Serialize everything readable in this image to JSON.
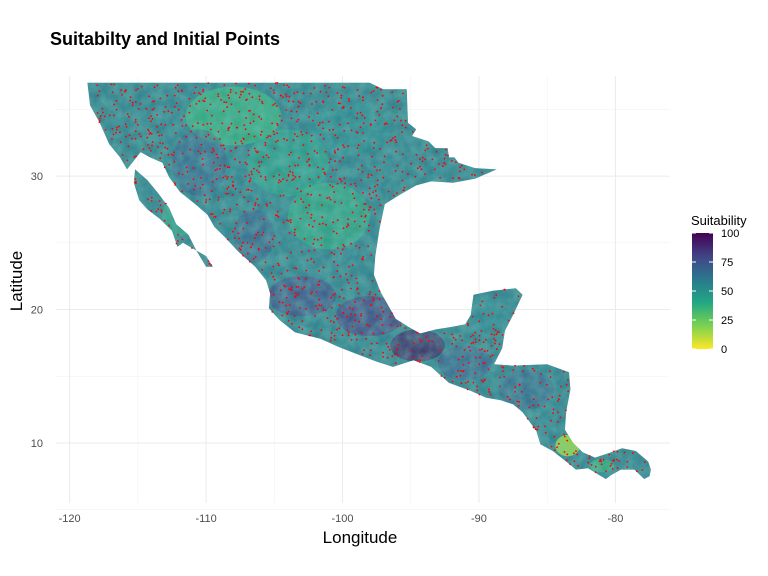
{
  "chart_data": {
    "type": "heatmap",
    "title": "Suitabilty and Initial Points",
    "xlabel": "Longitude",
    "ylabel": "Latitude",
    "xlim": [
      -121,
      -76
    ],
    "ylim": [
      5.5,
      37.5
    ],
    "x_ticks": [
      -120,
      -110,
      -100,
      -90,
      -80
    ],
    "y_ticks": [
      10,
      20,
      30
    ],
    "x_tick_labels": [
      "-120",
      "-110",
      "-100",
      "-90",
      "-80"
    ],
    "y_tick_labels": [
      "10",
      "20",
      "30"
    ],
    "grid": true,
    "legend": {
      "title": "Suitability",
      "placement": "right",
      "range": [
        0,
        100
      ],
      "ticks": [
        0,
        25,
        50,
        75,
        100
      ],
      "tick_labels": [
        "0",
        "25",
        "50",
        "75",
        "100"
      ],
      "colors": [
        "#FDE725",
        "#7AD151",
        "#22A884",
        "#2A788E",
        "#414487",
        "#440154"
      ]
    },
    "fill_color_range_typical": [
      "#2A788E",
      "#22A884"
    ],
    "points_color": "#FF0000",
    "point_count_approx": 1200
  }
}
